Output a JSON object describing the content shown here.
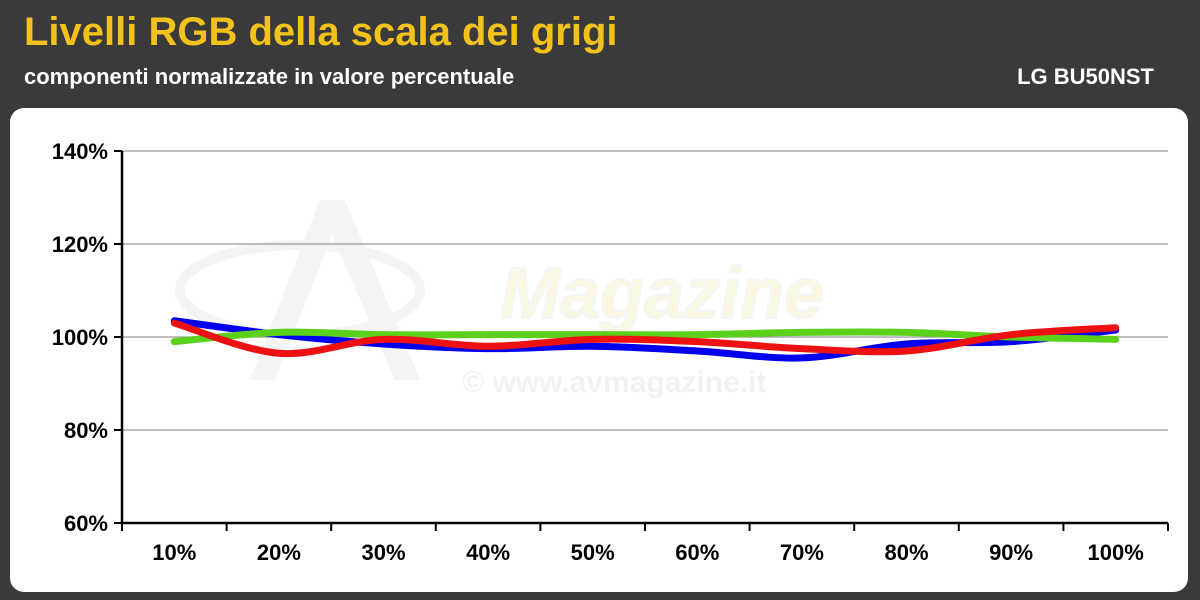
{
  "header": {
    "title": "Livelli RGB della scala dei grigi",
    "subtitle": "componenti normalizzate in valore percentuale",
    "model": "LG BU50NST"
  },
  "watermark": {
    "brand": "Magazine",
    "url": "© www.avmagazine.it"
  },
  "chart_data": {
    "type": "line",
    "title": "Livelli RGB della scala dei grigi",
    "subtitle": "componenti normalizzate in valore percentuale",
    "xlabel": "",
    "ylabel": "",
    "categories": [
      "10%",
      "20%",
      "30%",
      "40%",
      "50%",
      "60%",
      "70%",
      "80%",
      "90%",
      "100%"
    ],
    "y_ticks": [
      "60%",
      "80%",
      "100%",
      "120%",
      "140%"
    ],
    "ylim": [
      60,
      140
    ],
    "grid": true,
    "series": [
      {
        "color": "#0000ee",
        "values": [
          103.5,
          100.5,
          98.5,
          97.5,
          98.0,
          97.0,
          95.5,
          98.5,
          99.0,
          101.5
        ]
      },
      {
        "color": "#5cd11c",
        "values": [
          99.0,
          101.0,
          100.5,
          100.5,
          100.5,
          100.5,
          101.0,
          101.0,
          100.0,
          99.5
        ]
      },
      {
        "color": "#ee1111",
        "values": [
          103.0,
          96.5,
          99.5,
          98.0,
          99.5,
          99.0,
          97.5,
          97.0,
          100.5,
          102.0
        ]
      }
    ]
  }
}
